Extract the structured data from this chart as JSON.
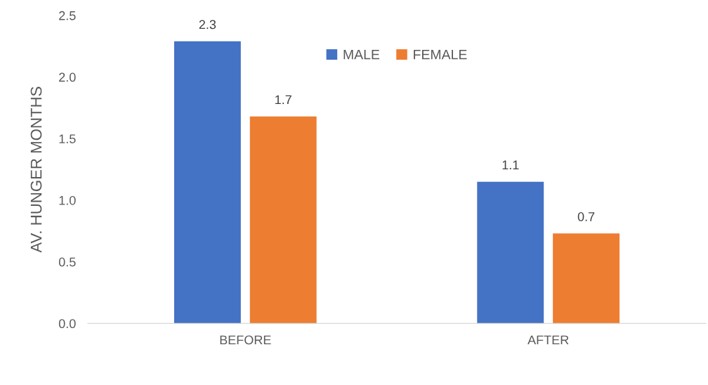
{
  "chart_data": {
    "type": "bar",
    "ylabel": "AV. HUNGER MONTHS",
    "categories": [
      "BEFORE",
      "AFTER"
    ],
    "series": [
      {
        "name": "MALE",
        "color": "#4472c4",
        "values": [
          2.29,
          1.15
        ],
        "value_labels": [
          "2.3",
          "1.1"
        ]
      },
      {
        "name": "FEMALE",
        "color": "#ed7d31",
        "values": [
          1.68,
          0.73
        ],
        "value_labels": [
          "1.7",
          "0.7"
        ]
      }
    ],
    "ylim": [
      0,
      2.5
    ],
    "yticks": [
      {
        "value": 0,
        "label": "0.0"
      },
      0.5,
      {
        "value": 1,
        "label": "1.0"
      },
      1.5,
      {
        "value": 2,
        "label": "2.0"
      },
      2.5
    ],
    "grid": false,
    "legend": "top"
  }
}
